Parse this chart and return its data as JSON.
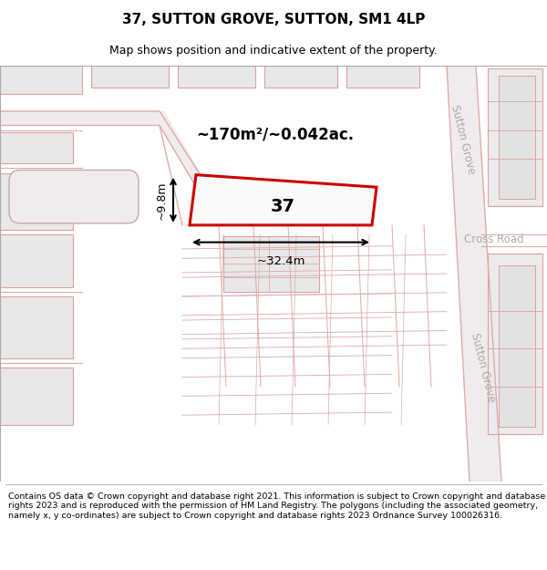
{
  "title": "37, SUTTON GROVE, SUTTON, SM1 4LP",
  "subtitle": "Map shows position and indicative extent of the property.",
  "footer": "Contains OS data © Crown copyright and database right 2021. This information is subject to Crown copyright and database rights 2023 and is reproduced with the permission of HM Land Registry. The polygons (including the associated geometry, namely x, y co-ordinates) are subject to Crown copyright and database rights 2023 Ordnance Survey 100026316.",
  "area_text": "~170m²/~0.042ac.",
  "number_text": "37",
  "width_text": "~32.4m",
  "height_text": "~9.8m",
  "road_name_sutton_upper": "Sutton Grove",
  "road_name_sutton_lower": "Sutton Grove",
  "road_name_cross": "Cross Road",
  "map_bg": "#f8f6f6",
  "building_fill": "#e8e8e8",
  "building_stroke": "#e0a0a0",
  "road_line_color": "#e0aaaa",
  "highlight_stroke": "#cc0000",
  "road_label_color": "#aaaaaa"
}
